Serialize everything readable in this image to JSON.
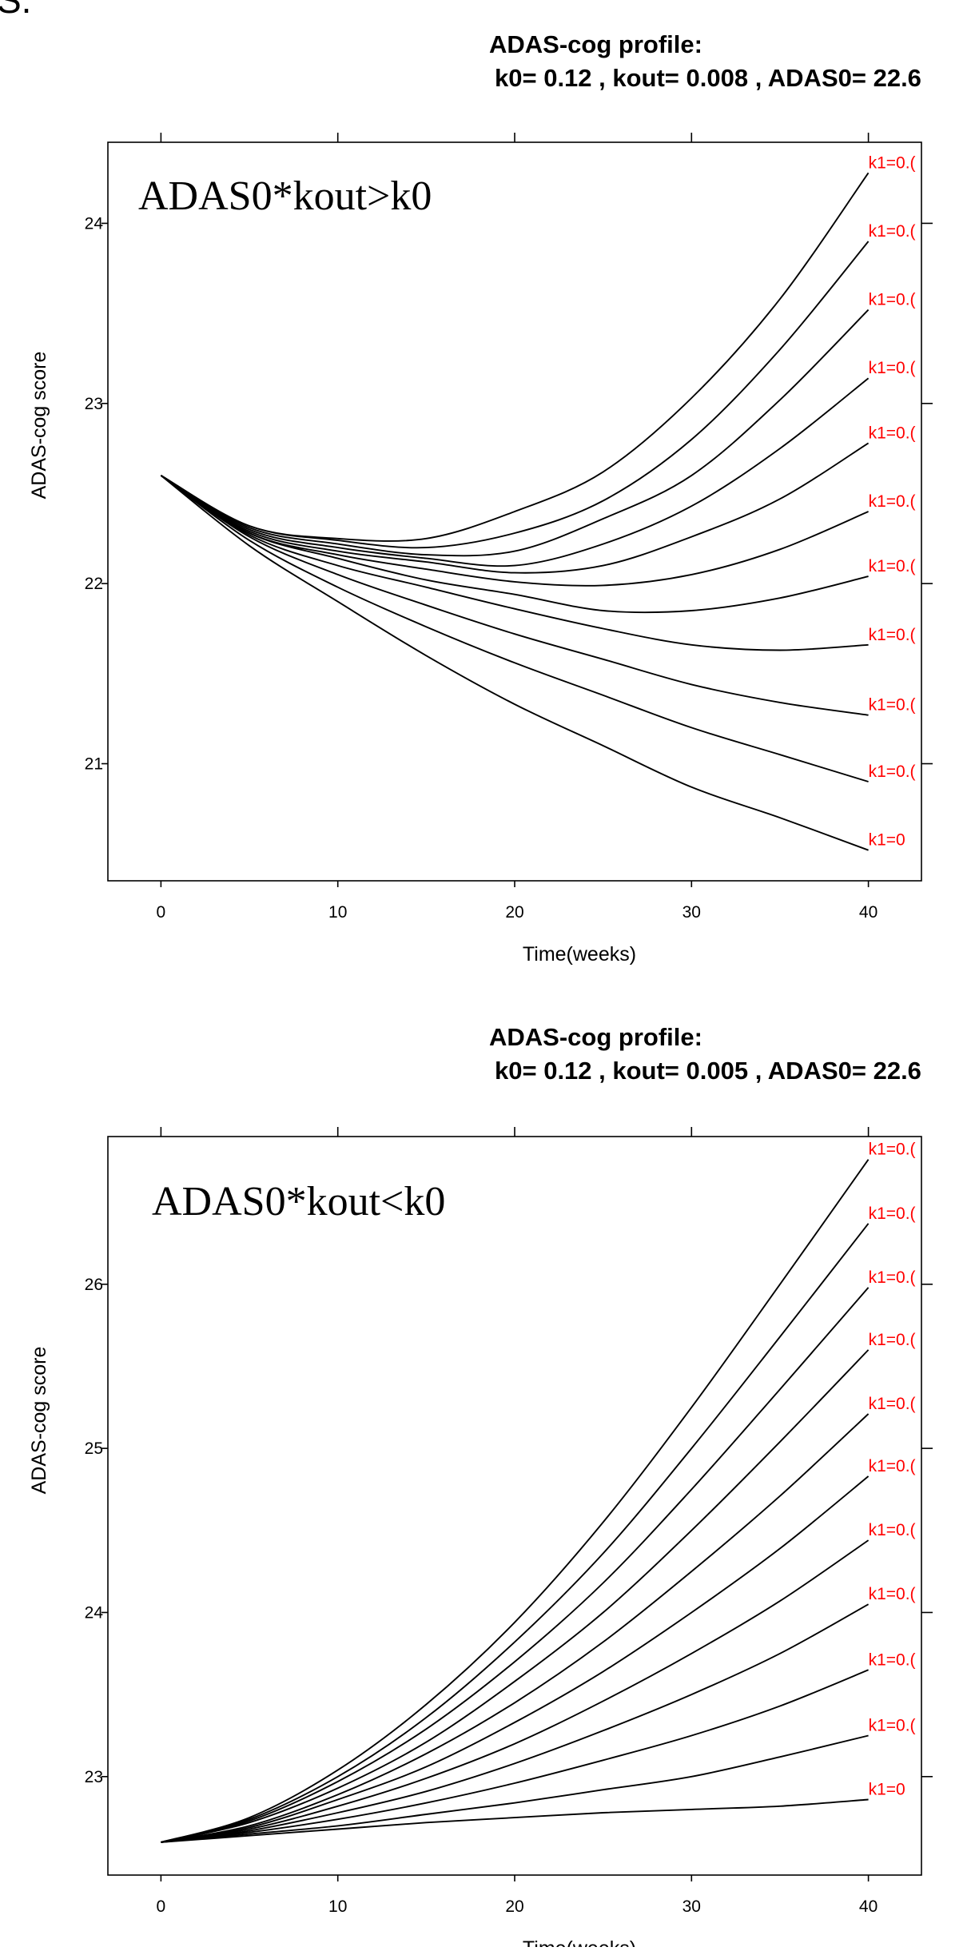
{
  "page": {
    "corner_label": "S."
  },
  "chart_data": [
    {
      "type": "line",
      "title": "ADAS-cog profile:",
      "subtitle": "k0= 0.12 , kout= 0.008 , ADAS0= 22.6",
      "annotation": "ADAS0*kout>k0",
      "xlabel": "Time(weeks)",
      "ylabel": "ADAS-cog score",
      "xlim": [
        -3,
        43
      ],
      "ylim": [
        20.35,
        24.45
      ],
      "xticks": [
        0,
        10,
        20,
        30,
        40
      ],
      "yticks": [
        21,
        22,
        23,
        24
      ],
      "label_color": "#ff0000",
      "x": [
        0,
        5,
        10,
        15,
        20,
        25,
        30,
        35,
        40
      ],
      "series": [
        {
          "name": "k1=0",
          "values": [
            22.6,
            22.21,
            21.9,
            21.6,
            21.33,
            21.1,
            20.87,
            20.7,
            20.52
          ]
        },
        {
          "values": [
            22.6,
            22.24,
            21.98,
            21.76,
            21.56,
            21.38,
            21.2,
            21.05,
            20.9
          ]
        },
        {
          "values": [
            22.6,
            22.26,
            22.05,
            21.88,
            21.72,
            21.58,
            21.44,
            21.34,
            21.27
          ]
        },
        {
          "values": [
            22.6,
            22.27,
            22.1,
            21.98,
            21.86,
            21.75,
            21.66,
            21.63,
            21.66
          ]
        },
        {
          "values": [
            22.6,
            22.28,
            22.14,
            22.02,
            21.94,
            21.85,
            21.85,
            21.92,
            22.04
          ]
        },
        {
          "values": [
            22.6,
            22.28,
            22.16,
            22.08,
            22.01,
            21.99,
            22.05,
            22.19,
            22.4
          ]
        },
        {
          "values": [
            22.6,
            22.29,
            22.18,
            22.12,
            22.06,
            22.1,
            22.26,
            22.47,
            22.78
          ]
        },
        {
          "values": [
            22.6,
            22.3,
            22.2,
            22.14,
            22.1,
            22.22,
            22.43,
            22.75,
            23.14
          ]
        },
        {
          "values": [
            22.6,
            22.31,
            22.22,
            22.16,
            22.18,
            22.36,
            22.6,
            23.02,
            23.52
          ]
        },
        {
          "values": [
            22.6,
            22.32,
            22.24,
            22.2,
            22.28,
            22.46,
            22.8,
            23.3,
            23.9
          ]
        },
        {
          "values": [
            22.6,
            22.32,
            22.25,
            22.25,
            22.4,
            22.62,
            23.03,
            23.58,
            24.28
          ]
        }
      ],
      "curve_labels": [
        "k1=0",
        "k1=0.(",
        "k1=0.(",
        "k1=0.(",
        "k1=0.(",
        "k1=0.(",
        "k1=0.(",
        "k1=0.(",
        "k1=0.(",
        "k1=0.(",
        "k1=0.("
      ]
    },
    {
      "type": "line",
      "title": "ADAS-cog profile:",
      "subtitle": "k0= 0.12 , kout= 0.005 , ADAS0= 22.6",
      "annotation": "ADAS0*kout<k0",
      "xlabel": "Time(weeks)",
      "ylabel": "ADAS-cog score",
      "xlim": [
        -3,
        43
      ],
      "ylim": [
        22.4,
        26.9
      ],
      "xticks": [
        0,
        10,
        20,
        30,
        40
      ],
      "yticks": [
        23,
        24,
        25,
        26
      ],
      "label_color": "#ff0000",
      "x": [
        0,
        5,
        10,
        15,
        20,
        25,
        30,
        35,
        40
      ],
      "series": [
        {
          "name": "k1=0",
          "values": [
            22.6,
            22.64,
            22.68,
            22.72,
            22.75,
            22.78,
            22.8,
            22.82,
            22.86
          ]
        },
        {
          "values": [
            22.6,
            22.65,
            22.7,
            22.77,
            22.84,
            22.92,
            23.0,
            23.12,
            23.25
          ]
        },
        {
          "values": [
            22.6,
            22.66,
            22.74,
            22.84,
            22.96,
            23.1,
            23.25,
            23.43,
            23.65
          ]
        },
        {
          "values": [
            22.6,
            22.67,
            22.78,
            22.91,
            23.08,
            23.28,
            23.5,
            23.75,
            24.05
          ]
        },
        {
          "values": [
            22.6,
            22.68,
            22.82,
            22.99,
            23.2,
            23.46,
            23.75,
            24.07,
            24.44
          ]
        },
        {
          "values": [
            22.6,
            22.69,
            22.86,
            23.06,
            23.33,
            23.64,
            24.0,
            24.39,
            24.83
          ]
        },
        {
          "values": [
            22.6,
            22.7,
            22.89,
            23.14,
            23.45,
            23.82,
            24.25,
            24.71,
            25.21
          ]
        },
        {
          "values": [
            22.6,
            22.72,
            22.93,
            23.21,
            23.58,
            24.0,
            24.5,
            25.04,
            25.6
          ]
        },
        {
          "values": [
            22.6,
            22.73,
            22.97,
            23.29,
            23.7,
            24.18,
            24.75,
            25.36,
            25.98
          ]
        },
        {
          "values": [
            22.6,
            22.74,
            23.0,
            23.36,
            23.82,
            24.36,
            25.0,
            25.68,
            26.37
          ]
        },
        {
          "values": [
            22.6,
            22.75,
            23.04,
            23.44,
            23.94,
            24.55,
            25.25,
            26.0,
            26.76
          ]
        }
      ],
      "curve_labels": [
        "k1=0",
        "k1=0.(",
        "k1=0.(",
        "k1=0.(",
        "k1=0.(",
        "k1=0.(",
        "k1=0.(",
        "k1=0.(",
        "k1=0.(",
        "k1=0.(",
        "k1=0.("
      ]
    }
  ]
}
